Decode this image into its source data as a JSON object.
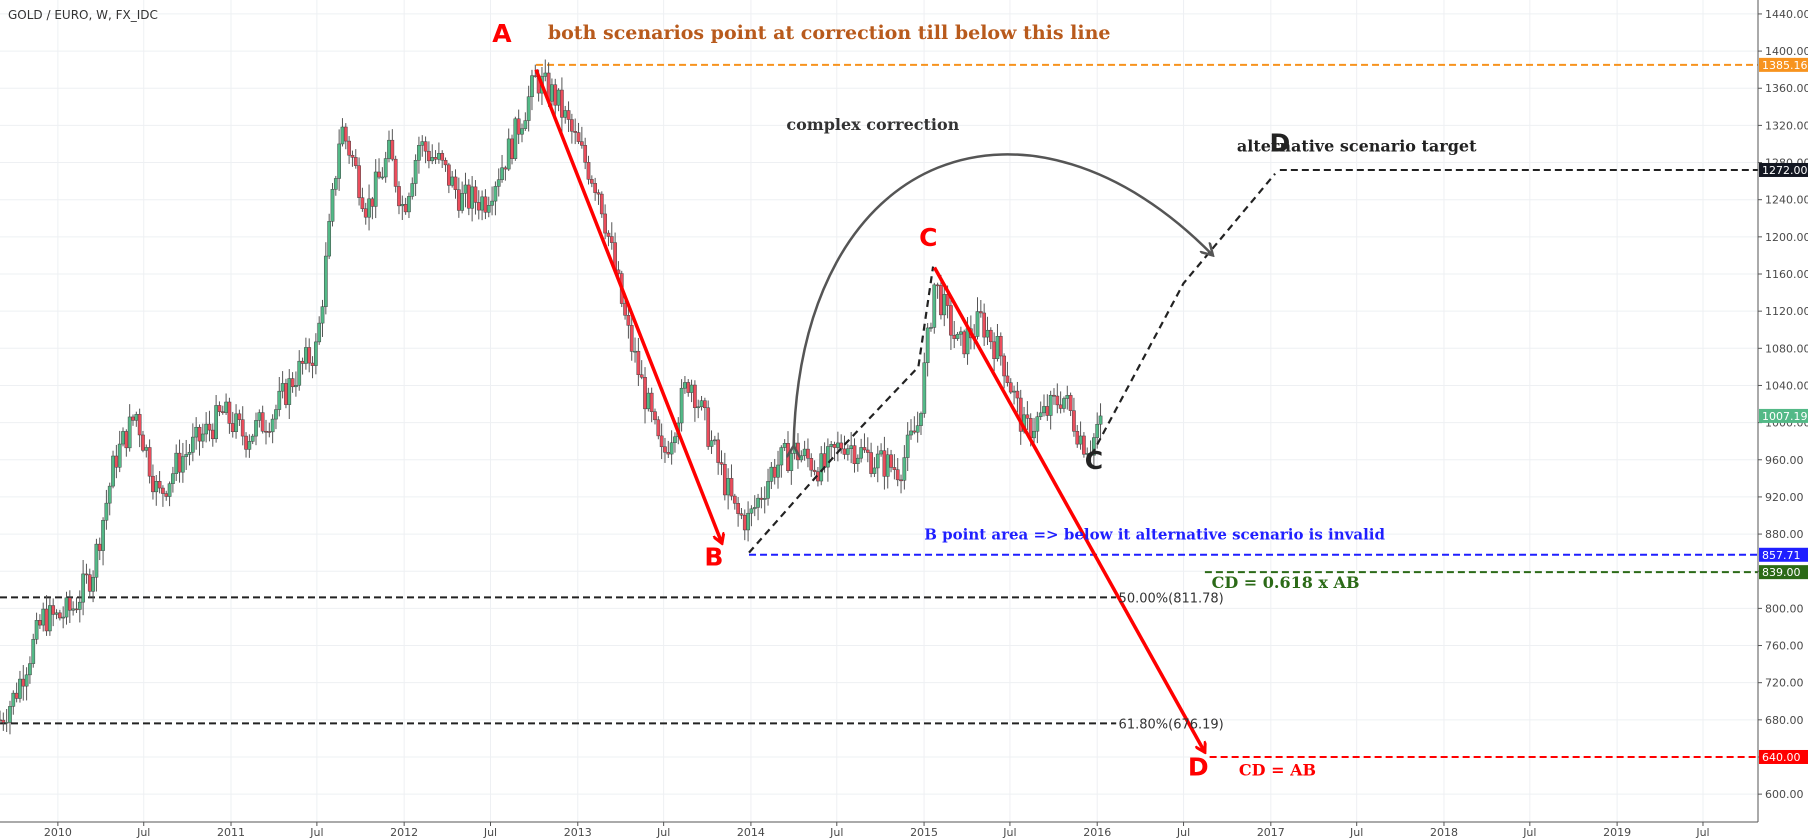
{
  "chart_data": {
    "type": "candlestick",
    "symbol_label": "GOLD / EURO, W, FX_IDC",
    "x_range": [
      "2009-09-01",
      "2019-10-25"
    ],
    "y_range": [
      570,
      1455
    ],
    "y_ticks": [
      600,
      640,
      680,
      720,
      760,
      800,
      840,
      880,
      920,
      960,
      1000,
      1040,
      1080,
      1120,
      1160,
      1200,
      1240,
      1280,
      1320,
      1360,
      1400,
      1440
    ],
    "y_tick_labels": [
      "600.00",
      "640.00",
      "680.00",
      "720.00",
      "760.00",
      "800.00",
      "840.00",
      "880.00",
      "920.00",
      "960.00",
      "1000.00",
      "1040.00",
      "1080.00",
      "1120.00",
      "1160.00",
      "1200.00",
      "1240.00",
      "1280.00",
      "1320.00",
      "1360.00",
      "1400.00",
      "1440.00"
    ],
    "x_ticks": [
      {
        "date": "2010-01-01",
        "label": "2010"
      },
      {
        "date": "2010-07-01",
        "label": "Jul"
      },
      {
        "date": "2011-01-01",
        "label": "2011"
      },
      {
        "date": "2011-07-01",
        "label": "Jul"
      },
      {
        "date": "2012-01-01",
        "label": "2012"
      },
      {
        "date": "2012-07-01",
        "label": "Jul"
      },
      {
        "date": "2013-01-01",
        "label": "2013"
      },
      {
        "date": "2013-07-01",
        "label": "Jul"
      },
      {
        "date": "2014-01-01",
        "label": "2014"
      },
      {
        "date": "2014-07-01",
        "label": "Jul"
      },
      {
        "date": "2015-01-01",
        "label": "2015"
      },
      {
        "date": "2015-07-01",
        "label": "Jul"
      },
      {
        "date": "2016-01-01",
        "label": "2016"
      },
      {
        "date": "2016-07-01",
        "label": "Jul"
      },
      {
        "date": "2017-01-01",
        "label": "2017"
      },
      {
        "date": "2017-07-01",
        "label": "Jul"
      },
      {
        "date": "2018-01-01",
        "label": "2018"
      },
      {
        "date": "2018-07-01",
        "label": "Jul"
      },
      {
        "date": "2019-01-01",
        "label": "2019"
      },
      {
        "date": "2019-07-01",
        "label": "Jul"
      }
    ],
    "grid": true,
    "up_color": "#53b987",
    "down_color": "#eb4d5c",
    "price_path": [
      [
        "2009-09-01",
        680
      ],
      [
        "2009-10-01",
        705
      ],
      [
        "2009-12-01",
        790
      ],
      [
        "2010-01-01",
        790
      ],
      [
        "2010-02-01",
        800
      ],
      [
        "2010-03-15",
        840
      ],
      [
        "2010-05-01",
        960
      ],
      [
        "2010-06-15",
        1010
      ],
      [
        "2010-08-01",
        920
      ],
      [
        "2010-09-15",
        960
      ],
      [
        "2010-11-01",
        985
      ],
      [
        "2010-12-15",
        1010
      ],
      [
        "2011-02-01",
        985
      ],
      [
        "2011-04-01",
        1010
      ],
      [
        "2011-05-15",
        1050
      ],
      [
        "2011-07-01",
        1080
      ],
      [
        "2011-08-20",
        1320
      ],
      [
        "2011-09-10",
        1290
      ],
      [
        "2011-10-15",
        1230
      ],
      [
        "2011-12-01",
        1290
      ],
      [
        "2011-12-30",
        1230
      ],
      [
        "2012-02-01",
        1300
      ],
      [
        "2012-03-15",
        1280
      ],
      [
        "2012-05-01",
        1240
      ],
      [
        "2012-06-20",
        1240
      ],
      [
        "2012-08-15",
        1300
      ],
      [
        "2012-10-05",
        1370
      ],
      [
        "2012-11-15",
        1350
      ],
      [
        "2012-12-30",
        1300
      ],
      [
        "2013-02-15",
        1250
      ],
      [
        "2013-04-15",
        1100
      ],
      [
        "2013-06-28",
        960
      ],
      [
        "2013-08-25",
        1050
      ],
      [
        "2013-10-15",
        970
      ],
      [
        "2013-12-01",
        900
      ],
      [
        "2013-12-28",
        895
      ],
      [
        "2014-02-15",
        950
      ],
      [
        "2014-04-01",
        970
      ],
      [
        "2014-06-01",
        950
      ],
      [
        "2014-07-15",
        980
      ],
      [
        "2014-09-15",
        960
      ],
      [
        "2014-11-10",
        950
      ],
      [
        "2014-12-20",
        1000
      ],
      [
        "2015-01-23",
        1150
      ],
      [
        "2015-03-15",
        1080
      ],
      [
        "2015-05-01",
        1110
      ],
      [
        "2015-06-15",
        1070
      ],
      [
        "2015-08-01",
        990
      ],
      [
        "2015-09-15",
        1010
      ],
      [
        "2015-10-20",
        1030
      ],
      [
        "2015-12-01",
        980
      ],
      [
        "2015-12-20",
        975
      ],
      [
        "2016-01-08",
        1007
      ]
    ],
    "candle_weeks": 332,
    "seed": 7,
    "annotations": {
      "levels": [
        {
          "name": "orange-resistance-line",
          "from": "2012-10-05",
          "to": "2019-10-25",
          "y": 1385.16,
          "color": "#f7931e",
          "badge": "1385.16",
          "badge_bg": "#f7931e"
        },
        {
          "name": "alternative-target-line",
          "from": "2017-01-20",
          "to": "2019-10-25",
          "y": 1272.0,
          "color": "#222222",
          "badge": "1272.00",
          "badge_bg": "#131722"
        },
        {
          "name": "b-point-line",
          "from": "2013-12-28",
          "to": "2019-10-25",
          "y": 857.71,
          "color": "#1f1fff",
          "badge": "857.71",
          "badge_bg": "#1f1fff"
        },
        {
          "name": "cd-0618-line",
          "from": "2016-08-15",
          "to": "2019-10-25",
          "y": 839.0,
          "color": "#2b6a17",
          "badge": "839.00",
          "badge_bg": "#2b6a17"
        },
        {
          "name": "fib-50-line",
          "from": "2009-09-01",
          "to": "2016-02-10",
          "y": 811.78,
          "color": "#222222"
        },
        {
          "name": "fib-618-line",
          "from": "2009-09-01",
          "to": "2016-02-10",
          "y": 676.19,
          "color": "#222222"
        },
        {
          "name": "cd-equals-ab-line",
          "from": "2016-08-25",
          "to": "2019-10-25",
          "y": 640.0,
          "color": "#ff0000",
          "badge": "640.00",
          "badge_bg": "#ff0000"
        }
      ],
      "last_price_badge": {
        "y": 1007.19,
        "text": "1007.19",
        "bg": "#53b987"
      },
      "fib_labels": [
        {
          "text": "50.00%(811.78)",
          "x": "2016-02-15",
          "y": 811.78
        },
        {
          "text": "61.80%(676.19)",
          "x": "2016-02-15",
          "y": 676.19
        }
      ],
      "red_arrows": [
        {
          "from": [
            "2012-10-05",
            1380
          ],
          "to": [
            "2013-11-01",
            870
          ]
        },
        {
          "from": [
            "2015-01-23",
            1167
          ],
          "to": [
            "2016-08-15",
            645
          ]
        }
      ],
      "black_dashed": [
        [
          [
            "2013-12-28",
            860
          ],
          [
            "2014-07-15",
            975
          ],
          [
            "2014-12-20",
            1060
          ],
          [
            "2015-01-20",
            1168
          ]
        ],
        [
          [
            "2015-12-20",
            965
          ],
          [
            "2016-07-01",
            1150
          ],
          [
            "2017-01-10",
            1268
          ]
        ]
      ],
      "curve_arrow": {
        "start": [
          "2014-04-01",
          975
        ],
        "control1": [
          "2014-04-15",
          1300
        ],
        "control2": [
          "2015-08-15",
          1380
        ],
        "end": [
          "2016-09-01",
          1180
        ]
      },
      "point_labels": [
        {
          "text": "A",
          "x": "2012-07-25",
          "y": 1410,
          "color": "#ff0000"
        },
        {
          "text": "B",
          "x": "2013-10-15",
          "y": 846,
          "color": "#ff0000"
        },
        {
          "text": "C",
          "x": "2015-01-10",
          "y": 1190,
          "color": "#ff0000"
        },
        {
          "text": "C",
          "x": "2015-12-25",
          "y": 950,
          "color": "#222222"
        },
        {
          "text": "D",
          "x": "2017-01-20",
          "y": 1292,
          "color": "#222222"
        },
        {
          "text": "D",
          "x": "2016-08-01",
          "y": 620,
          "color": "#ff0000"
        }
      ],
      "texts": [
        {
          "text": "both scenarios point at correction till below this line",
          "x": "2014-06-15",
          "y": 1413,
          "color": "#b85a1c",
          "size": 19
        },
        {
          "text": "complex correction",
          "x": "2014-09-15",
          "y": 1315,
          "color": "#333333",
          "size": 16
        },
        {
          "text": "alternative scenario target",
          "x": "2017-07-01",
          "y": 1292,
          "color": "#222222",
          "size": 16
        },
        {
          "text": "B point area => below it alternative scenario is invalid",
          "x": "2016-05-01",
          "y": 874,
          "color": "#1f1fff",
          "size": 15
        },
        {
          "text": "CD = 0.618 x AB",
          "x": "2017-02-01",
          "y": 822,
          "color": "#2b6a17",
          "size": 16
        },
        {
          "text": "CD = AB",
          "x": "2017-01-15",
          "y": 620,
          "color": "#ff0000",
          "size": 16
        }
      ]
    }
  }
}
